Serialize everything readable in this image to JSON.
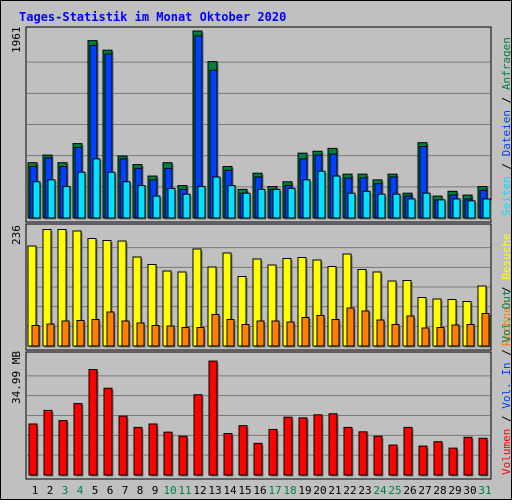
{
  "title": "Tages-Statistik im Monat Oktober 2020",
  "colors": {
    "background": "#c0c0c0",
    "title": "#0000ff",
    "anfragen": "#008040",
    "dateien": "#0040ff",
    "seiten": "#00e0ff",
    "besuche": "#ffff00",
    "rechner": "#ff8000",
    "volumen": "#ff0000",
    "weekend_label": "#008040",
    "weekday_label": "#000000"
  },
  "chart_data": [
    {
      "type": "bar",
      "panel": "top",
      "ymax_label": "1961",
      "ylim": [
        0,
        1961
      ],
      "x": [
        1,
        2,
        3,
        4,
        5,
        6,
        7,
        8,
        9,
        10,
        11,
        12,
        13,
        14,
        15,
        16,
        17,
        18,
        19,
        20,
        21,
        22,
        23,
        24,
        25,
        26,
        27,
        28,
        29,
        30,
        31
      ],
      "series": [
        {
          "name": "Anfragen",
          "values": [
            580,
            660,
            580,
            780,
            1860,
            1760,
            650,
            560,
            440,
            580,
            340,
            1961,
            1640,
            540,
            300,
            470,
            330,
            380,
            680,
            700,
            730,
            460,
            460,
            400,
            460,
            260,
            790,
            230,
            280,
            240,
            330
          ]
        },
        {
          "name": "Dateien",
          "values": [
            540,
            630,
            540,
            740,
            1810,
            1720,
            620,
            520,
            400,
            520,
            300,
            1910,
            1550,
            500,
            260,
            430,
            300,
            340,
            620,
            660,
            670,
            420,
            420,
            360,
            430,
            230,
            750,
            190,
            240,
            200,
            290
          ]
        },
        {
          "name": "Seiten",
          "values": [
            380,
            400,
            330,
            480,
            620,
            480,
            380,
            340,
            230,
            310,
            250,
            330,
            430,
            340,
            260,
            300,
            300,
            310,
            400,
            490,
            440,
            260,
            280,
            250,
            250,
            200,
            260,
            190,
            200,
            180,
            200
          ]
        }
      ]
    },
    {
      "type": "bar",
      "panel": "middle",
      "ymax_label": "236",
      "ylim": [
        0,
        236
      ],
      "x": [
        1,
        2,
        3,
        4,
        5,
        6,
        7,
        8,
        9,
        10,
        11,
        12,
        13,
        14,
        15,
        16,
        17,
        18,
        19,
        20,
        21,
        22,
        23,
        24,
        25,
        26,
        27,
        28,
        29,
        30,
        31
      ],
      "series": [
        {
          "name": "Besuche",
          "values": [
            200,
            233,
            233,
            230,
            215,
            211,
            210,
            178,
            163,
            150,
            148,
            194,
            158,
            186,
            139,
            174,
            162,
            175,
            177,
            172,
            159,
            184,
            153,
            148,
            130,
            131,
            97,
            94,
            93,
            89,
            120
          ]
        },
        {
          "name": "Rechner",
          "values": [
            41,
            44,
            50,
            51,
            53,
            68,
            50,
            46,
            41,
            40,
            37,
            37,
            63,
            53,
            43,
            50,
            50,
            48,
            57,
            61,
            53,
            76,
            70,
            52,
            43,
            60,
            36,
            37,
            42,
            43,
            65
          ]
        }
      ]
    },
    {
      "type": "bar",
      "panel": "bottom",
      "ymax_label": "34.99 MB",
      "ylim": [
        0,
        34.99
      ],
      "x": [
        1,
        2,
        3,
        4,
        5,
        6,
        7,
        8,
        9,
        10,
        11,
        12,
        13,
        14,
        15,
        16,
        17,
        18,
        19,
        20,
        21,
        22,
        23,
        24,
        25,
        26,
        27,
        28,
        29,
        30,
        31
      ],
      "series": [
        {
          "name": "Volumen",
          "values": [
            15,
            19,
            16,
            21,
            31,
            25.5,
            17.3,
            14,
            15,
            12.6,
            11.4,
            23.6,
            33.5,
            12.2,
            14.5,
            9.3,
            13.4,
            17,
            16.8,
            17.7,
            18,
            14,
            12.7,
            11.4,
            8.8,
            14,
            8.5,
            9.8,
            7.9,
            11.1,
            10.8
          ]
        }
      ]
    }
  ],
  "x_labels": [
    {
      "text": "1",
      "weekend": false
    },
    {
      "text": "2",
      "weekend": false
    },
    {
      "text": "3",
      "weekend": true
    },
    {
      "text": "4",
      "weekend": true
    },
    {
      "text": "5",
      "weekend": false
    },
    {
      "text": "6",
      "weekend": false
    },
    {
      "text": "7",
      "weekend": false
    },
    {
      "text": "8",
      "weekend": false
    },
    {
      "text": "9",
      "weekend": false
    },
    {
      "text": "10",
      "weekend": true
    },
    {
      "text": "11",
      "weekend": true
    },
    {
      "text": "12",
      "weekend": false
    },
    {
      "text": "13",
      "weekend": false
    },
    {
      "text": "14",
      "weekend": false
    },
    {
      "text": "15",
      "weekend": false
    },
    {
      "text": "16",
      "weekend": false
    },
    {
      "text": "17",
      "weekend": true
    },
    {
      "text": "18",
      "weekend": true
    },
    {
      "text": "19",
      "weekend": false
    },
    {
      "text": "20",
      "weekend": false
    },
    {
      "text": "21",
      "weekend": false
    },
    {
      "text": "22",
      "weekend": false
    },
    {
      "text": "23",
      "weekend": false
    },
    {
      "text": "24",
      "weekend": true
    },
    {
      "text": "25",
      "weekend": true
    },
    {
      "text": "26",
      "weekend": false
    },
    {
      "text": "27",
      "weekend": false
    },
    {
      "text": "28",
      "weekend": false
    },
    {
      "text": "29",
      "weekend": false
    },
    {
      "text": "30",
      "weekend": false
    },
    {
      "text": "31",
      "weekend": true
    }
  ],
  "right_legend": {
    "top": [
      {
        "text": "Seiten",
        "color": "#00e0ff"
      },
      {
        "text": " / ",
        "color": "#000000"
      },
      {
        "text": "Dateien",
        "color": "#0040ff"
      },
      {
        "text": " / ",
        "color": "#000000"
      },
      {
        "text": "Anfragen",
        "color": "#008040"
      }
    ],
    "middle": [
      {
        "text": "Rechner",
        "color": "#ff8000"
      },
      {
        "text": " / ",
        "color": "#000000"
      },
      {
        "text": "Besuche",
        "color": "#ffff00"
      }
    ],
    "bottom": [
      {
        "text": "Volumen",
        "color": "#ff0000"
      },
      {
        "text": " / ",
        "color": "#000000"
      },
      {
        "text": "Vol. In",
        "color": "#0040ff"
      },
      {
        "text": " / ",
        "color": "#000000"
      },
      {
        "text": "Vol. Out",
        "color": "#008040"
      }
    ]
  }
}
